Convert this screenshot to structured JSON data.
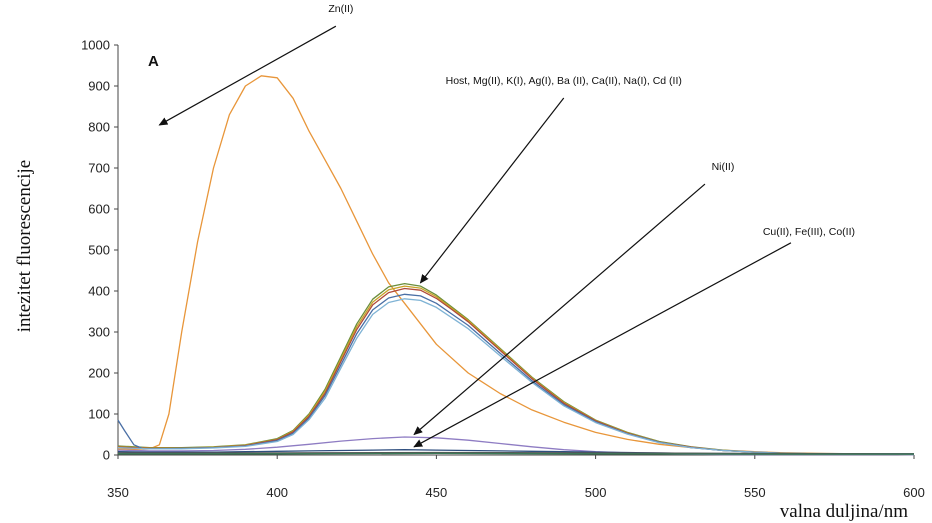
{
  "chart_data": {
    "type": "line",
    "panel_label": "A",
    "xlabel": "valna duljina/nm",
    "ylabel": "intezitet fluorescencije",
    "xlim": [
      350,
      600
    ],
    "ylim": [
      0,
      1000
    ],
    "x_ticks": [
      350,
      400,
      450,
      500,
      550,
      600
    ],
    "y_ticks": [
      0,
      100,
      200,
      300,
      400,
      500,
      600,
      700,
      800,
      900,
      1000
    ],
    "grid": false,
    "series": [
      {
        "color": "#e8963a",
        "x": [
          350,
          355,
          360,
          363,
          366,
          370,
          375,
          380,
          385,
          390,
          395,
          400,
          405,
          410,
          415,
          420,
          425,
          430,
          435,
          440,
          445,
          450,
          460,
          470,
          480,
          490,
          500,
          510,
          520,
          530,
          540,
          550,
          560,
          570,
          580,
          590,
          600
        ],
        "y": [
          15,
          14,
          15,
          25,
          100,
          300,
          520,
          700,
          830,
          900,
          925,
          920,
          870,
          790,
          720,
          650,
          570,
          490,
          420,
          370,
          320,
          270,
          200,
          150,
          110,
          80,
          55,
          38,
          26,
          18,
          12,
          8,
          5,
          4,
          3,
          2,
          2
        ]
      },
      {
        "color": "#6b8e3a",
        "x": [
          350,
          360,
          370,
          380,
          390,
          400,
          405,
          410,
          415,
          420,
          425,
          430,
          435,
          440,
          445,
          450,
          455,
          460,
          470,
          480,
          490,
          500,
          510,
          520,
          530,
          540,
          550,
          560,
          570,
          580,
          590,
          600
        ],
        "y": [
          22,
          18,
          18,
          20,
          25,
          40,
          60,
          100,
          160,
          240,
          320,
          380,
          410,
          418,
          412,
          390,
          360,
          330,
          260,
          190,
          130,
          85,
          55,
          33,
          20,
          12,
          7,
          4,
          3,
          2,
          2,
          1
        ]
      },
      {
        "color": "#c9a227",
        "x": [
          350,
          360,
          370,
          380,
          390,
          400,
          405,
          410,
          415,
          420,
          425,
          430,
          435,
          440,
          445,
          450,
          455,
          460,
          470,
          480,
          490,
          500,
          510,
          520,
          530,
          540,
          550,
          560,
          570,
          580,
          590,
          600
        ],
        "y": [
          20,
          17,
          17,
          19,
          24,
          38,
          58,
          97,
          155,
          234,
          313,
          373,
          403,
          412,
          407,
          386,
          357,
          328,
          258,
          188,
          128,
          84,
          54,
          32,
          19,
          11,
          7,
          4,
          3,
          2,
          2,
          1
        ]
      },
      {
        "color": "#b04a3a",
        "x": [
          350,
          360,
          370,
          380,
          390,
          400,
          405,
          410,
          415,
          420,
          425,
          430,
          435,
          440,
          445,
          450,
          455,
          460,
          470,
          480,
          490,
          500,
          510,
          520,
          530,
          540,
          550,
          560,
          570,
          580,
          590,
          600
        ],
        "y": [
          19,
          16,
          16,
          18,
          23,
          37,
          56,
          94,
          150,
          228,
          306,
          366,
          396,
          406,
          402,
          382,
          354,
          325,
          255,
          186,
          126,
          83,
          53,
          31,
          19,
          11,
          7,
          4,
          3,
          2,
          2,
          1
        ]
      },
      {
        "color": "#4a6fa5",
        "x": [
          350,
          352,
          355,
          358,
          360,
          370,
          380,
          390,
          400,
          405,
          410,
          415,
          420,
          425,
          430,
          435,
          440,
          445,
          450,
          455,
          460,
          470,
          480,
          490,
          500,
          510,
          520,
          530,
          540,
          550,
          560,
          570,
          580,
          590,
          600
        ],
        "y": [
          85,
          60,
          25,
          15,
          15,
          16,
          18,
          22,
          35,
          53,
          90,
          145,
          220,
          296,
          354,
          383,
          392,
          388,
          370,
          343,
          316,
          248,
          181,
          123,
          81,
          52,
          31,
          18,
          11,
          7,
          4,
          3,
          2,
          2,
          1
        ]
      },
      {
        "color": "#7fb3d5",
        "x": [
          350,
          360,
          370,
          380,
          390,
          400,
          405,
          410,
          415,
          420,
          425,
          430,
          435,
          440,
          445,
          450,
          455,
          460,
          470,
          480,
          490,
          500,
          510,
          520,
          530,
          540,
          550,
          560,
          570,
          580,
          590,
          600
        ],
        "y": [
          18,
          15,
          15,
          17,
          21,
          33,
          50,
          86,
          138,
          212,
          285,
          343,
          372,
          381,
          377,
          360,
          334,
          308,
          242,
          177,
          120,
          79,
          51,
          30,
          18,
          11,
          7,
          4,
          3,
          2,
          2,
          1
        ]
      },
      {
        "color": "#8e7cc3",
        "x": [
          350,
          360,
          370,
          380,
          390,
          400,
          410,
          420,
          430,
          440,
          450,
          460,
          470,
          480,
          490,
          500,
          510,
          520,
          530,
          540,
          550,
          560,
          570,
          580,
          590,
          600
        ],
        "y": [
          12,
          10,
          10,
          11,
          14,
          19,
          26,
          34,
          40,
          44,
          42,
          36,
          28,
          20,
          13,
          8,
          5,
          3,
          2,
          1,
          1,
          1,
          1,
          1,
          1,
          1
        ]
      },
      {
        "color": "#2f4f7f",
        "x": [
          350,
          360,
          370,
          380,
          390,
          400,
          410,
          420,
          430,
          440,
          450,
          460,
          470,
          480,
          490,
          500,
          510,
          520,
          530,
          540,
          550,
          560,
          570,
          580,
          590,
          600
        ],
        "y": [
          8,
          7,
          7,
          7,
          8,
          9,
          10,
          11,
          12,
          13,
          12,
          11,
          10,
          9,
          8,
          7,
          6,
          5,
          4,
          3,
          3,
          3,
          3,
          3,
          3,
          3
        ]
      },
      {
        "color": "#555555",
        "x": [
          350,
          400,
          450,
          500,
          550,
          600
        ],
        "y": [
          5,
          5,
          6,
          5,
          4,
          3
        ]
      },
      {
        "color": "#3b7a57",
        "x": [
          350,
          400,
          450,
          500,
          550,
          600
        ],
        "y": [
          3,
          3,
          4,
          3,
          2,
          2
        ]
      }
    ],
    "annotations": [
      {
        "text": "Zn(II)",
        "x": 420,
        "y": 1080,
        "arrow_to": [
          363,
          805
        ]
      },
      {
        "text": "Host,  Mg(II),  K(I),  Ag(I),  Ba (II),  Ca(II),  Na(I),  Cd (II)",
        "x": 490,
        "y": 905,
        "arrow_to": [
          445,
          420
        ]
      },
      {
        "text": "Ni(II)",
        "x": 540,
        "y": 695,
        "arrow_to": [
          443,
          50
        ]
      },
      {
        "text": "Cu(II),  Fe(III),  Co(II)",
        "x": 567,
        "y": 537,
        "arrow_to": [
          443,
          20
        ]
      }
    ]
  }
}
